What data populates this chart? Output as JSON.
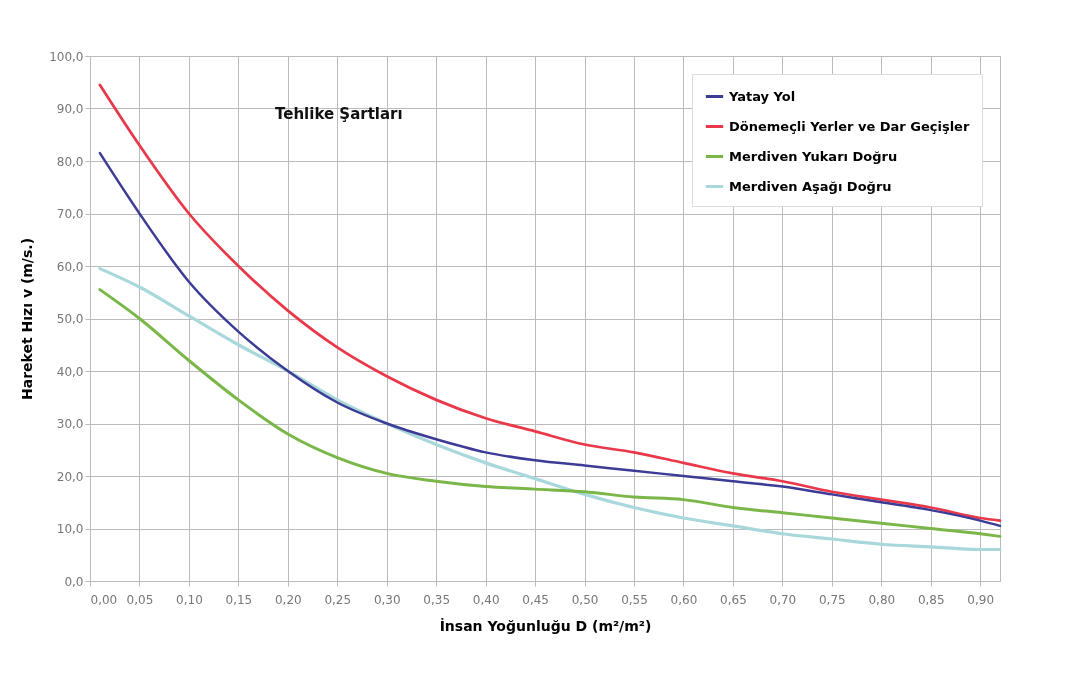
{
  "chart_data": {
    "type": "line",
    "xlabel": "İnsan Yoğunluğu D (m²/m²)",
    "ylabel": "Hareket Hızı v (m/s.)",
    "annotations": [
      "Tehlike Şartları"
    ],
    "x": [
      0.01,
      0.05,
      0.1,
      0.15,
      0.2,
      0.25,
      0.3,
      0.35,
      0.4,
      0.45,
      0.5,
      0.55,
      0.6,
      0.65,
      0.7,
      0.75,
      0.8,
      0.85,
      0.9,
      0.92
    ],
    "series": [
      {
        "name": "Yatay Yol",
        "color": "#3c3c96",
        "values": [
          81.5,
          70,
          57,
          47.5,
          40,
          34,
          30,
          27,
          24.5,
          23,
          22,
          21,
          20,
          19,
          18,
          16.5,
          15,
          13.5,
          11.5,
          10.5
        ]
      },
      {
        "name": "Dönemeçli Yerler ve Dar Geçişler",
        "color": "#e8384a",
        "values": [
          94.5,
          83,
          70,
          60,
          51.5,
          44.5,
          39,
          34.5,
          31,
          28.5,
          26,
          24.5,
          22.5,
          20.5,
          19,
          17,
          15.5,
          14,
          12,
          11.5
        ]
      },
      {
        "name": "Merdiven Yukarı Doğru",
        "color": "#7ab648",
        "values": [
          55.5,
          50,
          42,
          34.5,
          28,
          23.5,
          20.5,
          19,
          18,
          17.5,
          17,
          16,
          15.5,
          14,
          13,
          12,
          11,
          10,
          9,
          8.5
        ]
      },
      {
        "name": "Merdiven Aşağı Doğru",
        "color": "#a8d8dc",
        "values": [
          59.5,
          56,
          50.5,
          45,
          40,
          34.5,
          30,
          26,
          22.5,
          19.5,
          16.5,
          14,
          12,
          10.5,
          9,
          8,
          7,
          6.5,
          6,
          6
        ]
      }
    ],
    "xlim": [
      0,
      0.92
    ],
    "xticks": [
      {
        "value": 0,
        "label": "0,00"
      },
      {
        "value": 0.05,
        "label": "0,05"
      },
      {
        "value": 0.1,
        "label": "0,10"
      },
      {
        "value": 0.15,
        "label": "0,15"
      },
      {
        "value": 0.2,
        "label": "0,20"
      },
      {
        "value": 0.25,
        "label": "0,25"
      },
      {
        "value": 0.3,
        "label": "0,30"
      },
      {
        "value": 0.35,
        "label": "0,35"
      },
      {
        "value": 0.4,
        "label": "0,40"
      },
      {
        "value": 0.45,
        "label": "0,45"
      },
      {
        "value": 0.5,
        "label": "0,50"
      },
      {
        "value": 0.55,
        "label": "0,55"
      },
      {
        "value": 0.6,
        "label": "0,60"
      },
      {
        "value": 0.65,
        "label": "0,65"
      },
      {
        "value": 0.7,
        "label": "0,70"
      },
      {
        "value": 0.75,
        "label": "0,75"
      },
      {
        "value": 0.8,
        "label": "0,80"
      },
      {
        "value": 0.85,
        "label": "0,85"
      },
      {
        "value": 0.9,
        "label": "0,90"
      }
    ],
    "ylim": [
      0,
      100
    ],
    "yticks": [
      {
        "value": 0,
        "label": "0,0"
      },
      {
        "value": 10,
        "label": "10,0"
      },
      {
        "value": 20,
        "label": "20,0"
      },
      {
        "value": 30,
        "label": "30,0"
      },
      {
        "value": 40,
        "label": "40,0"
      },
      {
        "value": 50,
        "label": "50,0"
      },
      {
        "value": 60,
        "label": "60,0"
      },
      {
        "value": 70,
        "label": "70,0"
      },
      {
        "value": 80,
        "label": "80,0"
      },
      {
        "value": 90,
        "label": "90,0"
      },
      {
        "value": 100,
        "label": "100,0"
      }
    ],
    "grid": true,
    "legend": "top right",
    "marker": "none",
    "line_style": "solid"
  }
}
